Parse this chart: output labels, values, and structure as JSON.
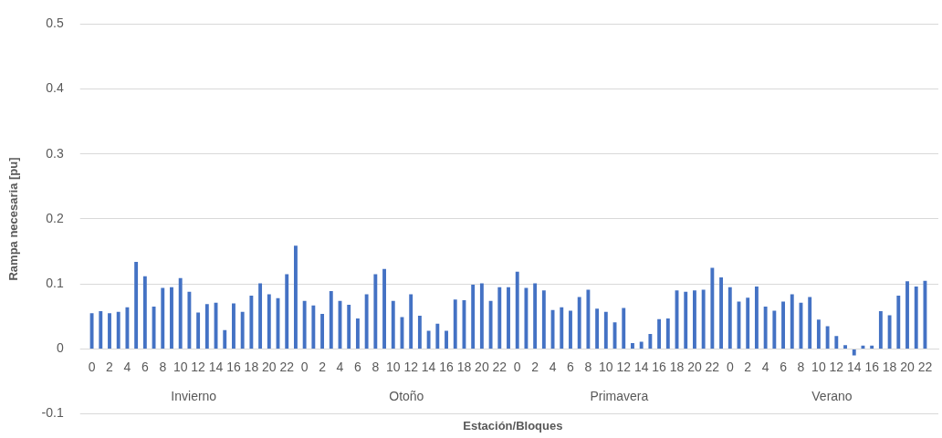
{
  "chart_data": {
    "type": "bar",
    "xlabel": "Estación/Bloques",
    "ylabel": "Rampa necesaria [pu]",
    "categories": [
      "0",
      null,
      "2",
      null,
      "4",
      null,
      "6",
      null,
      "8",
      null,
      "10",
      null,
      "12",
      null,
      "14",
      null,
      "16",
      null,
      "18",
      null,
      "20",
      null,
      "22",
      null,
      "0",
      null,
      "2",
      null,
      "4",
      null,
      "6",
      null,
      "8",
      null,
      "10",
      null,
      "12",
      null,
      "14",
      null,
      "16",
      null,
      "18",
      null,
      "20",
      null,
      "22",
      null,
      "0",
      null,
      "2",
      null,
      "4",
      null,
      "6",
      null,
      "8",
      null,
      "10",
      null,
      "12",
      null,
      "14",
      null,
      "16",
      null,
      "18",
      null,
      "20",
      null,
      "22",
      null,
      "0",
      null,
      "2",
      null,
      "4",
      null,
      "6",
      null,
      "8",
      null,
      "10",
      null,
      "12",
      null,
      "14",
      null,
      "16",
      null,
      "18",
      null,
      "20",
      null,
      "22",
      null
    ],
    "values": [
      0.055,
      0.058,
      0.055,
      0.057,
      0.064,
      0.134,
      0.112,
      0.065,
      0.094,
      0.095,
      0.109,
      0.088,
      0.056,
      0.069,
      0.071,
      0.029,
      0.07,
      0.057,
      0.082,
      0.101,
      0.084,
      0.078,
      0.115,
      0.159,
      0.074,
      0.067,
      0.054,
      0.089,
      0.074,
      0.068,
      0.047,
      0.084,
      0.115,
      0.123,
      0.074,
      0.049,
      0.084,
      0.051,
      0.028,
      0.039,
      0.028,
      0.076,
      0.075,
      0.099,
      0.101,
      0.074,
      0.095,
      0.095,
      0.119,
      0.094,
      0.101,
      0.09,
      0.06,
      0.064,
      0.059,
      0.08,
      0.091,
      0.062,
      0.057,
      0.041,
      0.063,
      0.009,
      0.011,
      0.023,
      0.046,
      0.047,
      0.09,
      0.088,
      0.09,
      0.091,
      0.125,
      0.11,
      0.095,
      0.073,
      0.079,
      0.096,
      0.065,
      0.059,
      0.073,
      0.084,
      0.071,
      0.08,
      0.045,
      0.035,
      0.02,
      0.006,
      -0.01,
      0.005,
      0.005,
      0.058,
      0.052,
      0.082,
      0.104,
      0.096,
      0.105,
      null
    ],
    "color": "#4472c4",
    "ylim": [
      -0.1,
      0.5
    ],
    "yticks": [
      -0.1,
      0,
      0.1,
      0.2,
      0.3,
      0.4,
      0.5
    ],
    "grid": "y",
    "annotations": [
      "Invierno",
      "Otoño",
      "Primavera",
      "Verano"
    ]
  }
}
